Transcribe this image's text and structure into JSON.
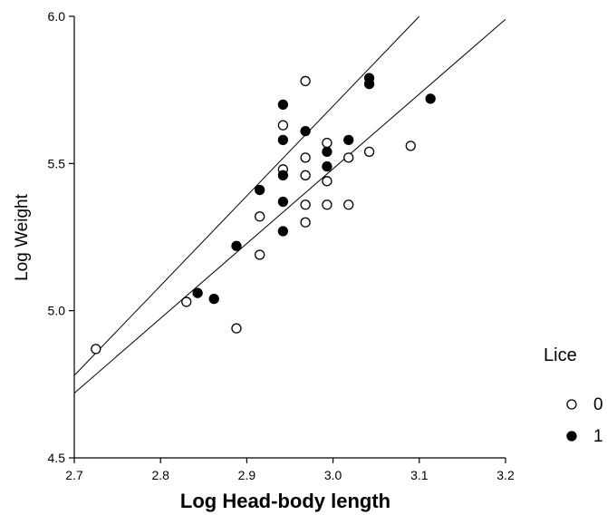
{
  "chart_data": {
    "type": "scatter",
    "title": "",
    "xlabel": "Log Head-body length",
    "ylabel": "Log Weight",
    "xlim": [
      2.7,
      3.2
    ],
    "ylim": [
      4.5,
      6.0
    ],
    "xticks": [
      "2.7",
      "2.8",
      "2.9",
      "3.0",
      "3.1",
      "3.2"
    ],
    "yticks": [
      "4.5",
      "5.0",
      "5.5",
      "6.0"
    ],
    "grid": false,
    "legend": {
      "title": "Lice",
      "placement": "right",
      "entries": [
        "0",
        "1"
      ]
    },
    "series": [
      {
        "name": "0",
        "marker": "open-circle",
        "points": [
          [
            2.725,
            4.87
          ],
          [
            2.83,
            5.03
          ],
          [
            2.888,
            4.94
          ],
          [
            2.915,
            5.19
          ],
          [
            2.915,
            5.32
          ],
          [
            2.942,
            5.48
          ],
          [
            2.942,
            5.63
          ],
          [
            2.968,
            5.78
          ],
          [
            2.968,
            5.52
          ],
          [
            2.968,
            5.46
          ],
          [
            2.968,
            5.36
          ],
          [
            2.968,
            5.3
          ],
          [
            2.993,
            5.57
          ],
          [
            2.993,
            5.44
          ],
          [
            2.993,
            5.36
          ],
          [
            3.018,
            5.52
          ],
          [
            3.018,
            5.36
          ],
          [
            3.042,
            5.54
          ],
          [
            3.09,
            5.56
          ]
        ]
      },
      {
        "name": "1",
        "marker": "filled-circle",
        "points": [
          [
            2.843,
            5.06
          ],
          [
            2.862,
            5.04
          ],
          [
            2.888,
            5.22
          ],
          [
            2.915,
            5.41
          ],
          [
            2.942,
            5.7
          ],
          [
            2.942,
            5.58
          ],
          [
            2.942,
            5.46
          ],
          [
            2.942,
            5.37
          ],
          [
            2.942,
            5.27
          ],
          [
            2.968,
            5.61
          ],
          [
            2.993,
            5.54
          ],
          [
            2.993,
            5.49
          ],
          [
            3.018,
            5.58
          ],
          [
            3.042,
            5.79
          ],
          [
            3.042,
            5.77
          ],
          [
            3.113,
            5.72
          ]
        ]
      }
    ],
    "fit_lines": [
      {
        "x": [
          2.7,
          3.1
        ],
        "y": [
          4.78,
          6.0
        ]
      },
      {
        "x": [
          2.7,
          3.2
        ],
        "y": [
          4.72,
          5.99
        ]
      }
    ]
  },
  "colors": {
    "axis": "#000000",
    "marker_open_fill": "#ffffff",
    "marker_filled_fill": "#000000",
    "line": "#000000"
  }
}
